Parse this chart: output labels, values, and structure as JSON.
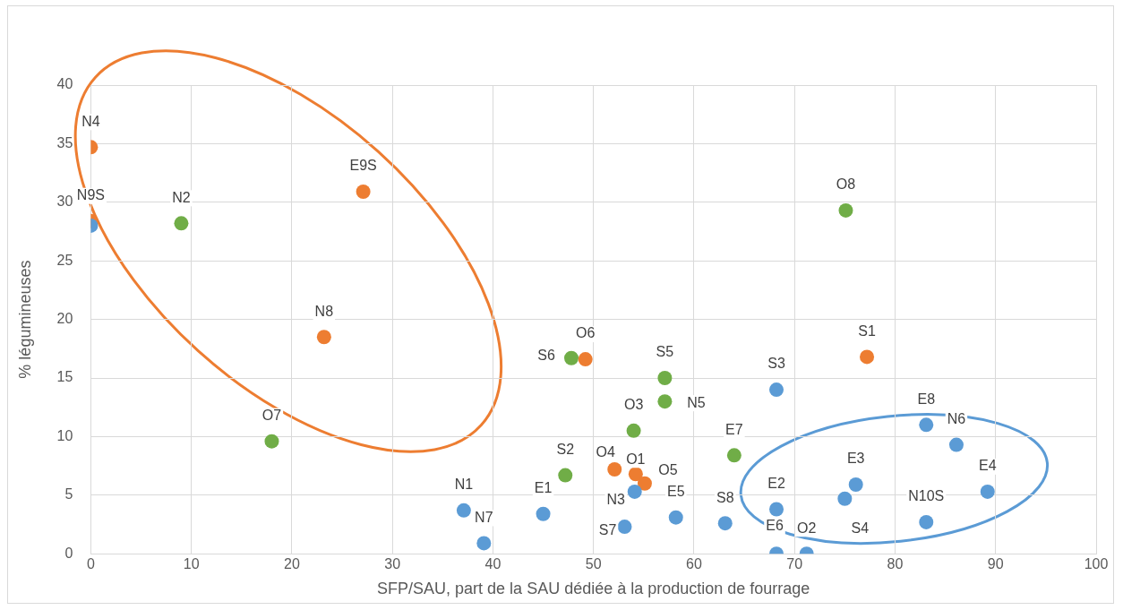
{
  "chart_data": {
    "type": "scatter",
    "xlabel": "SFP/SAU, part de la SAU dédiée à la production de fourrage",
    "ylabel": "% légumineuses",
    "xlim": [
      0,
      100
    ],
    "xticks": [
      0,
      10,
      20,
      30,
      40,
      50,
      60,
      70,
      80,
      90,
      100
    ],
    "ylim": [
      0,
      40
    ],
    "yticks": [
      0,
      5,
      10,
      15,
      20,
      25,
      30,
      35,
      40
    ],
    "grid": true,
    "legend": false,
    "marker": "circle",
    "series": [
      {
        "color": "#5b9bd5",
        "x": [
          0,
          37.1,
          39.1,
          45,
          54.1,
          53.1,
          58.2,
          63.1,
          68.2,
          68.2,
          68.2,
          71.2,
          76.1,
          75,
          83.1,
          86.1,
          89.2,
          83.1
        ],
        "values": [
          28,
          3.7,
          0.9,
          3.4,
          5.3,
          2.3,
          3.1,
          2.6,
          14,
          3.8,
          0,
          0,
          5.9,
          4.7,
          11,
          9.3,
          5.3,
          2.7
        ]
      },
      {
        "color": "#ed7d31",
        "x": [
          0,
          0,
          27.1,
          23.2,
          49.2,
          77.2,
          52.1,
          54.2,
          55.1
        ],
        "values": [
          34.7,
          28.4,
          30.9,
          18.5,
          16.6,
          16.8,
          7.2,
          6.8,
          6
        ]
      },
      {
        "color": "#70ad47",
        "x": [
          9,
          18,
          47.8,
          57.1,
          57.1,
          54,
          47.2,
          64,
          75.1
        ],
        "values": [
          28.2,
          9.6,
          16.7,
          15,
          13,
          10.5,
          6.7,
          8.4,
          29.3
        ]
      }
    ],
    "annotations": [
      {
        "text": "N4",
        "x": 0,
        "y": 34.7
      },
      {
        "text": "N9S",
        "x": 0,
        "y": 28.4
      },
      {
        "text": "E9S",
        "x": 27.1,
        "y": 30.9
      },
      {
        "text": "N8",
        "x": 23.2,
        "y": 18.5
      },
      {
        "text": "O6",
        "x": 49.2,
        "y": 16.6
      },
      {
        "text": "S6",
        "x": 47.8,
        "y": 16.7
      },
      {
        "text": "S5",
        "x": 57.1,
        "y": 15
      },
      {
        "text": "N5",
        "x": 57.1,
        "y": 13
      },
      {
        "text": "O3",
        "x": 54,
        "y": 10.5
      },
      {
        "text": "S2",
        "x": 47.2,
        "y": 6.7
      },
      {
        "text": "E7",
        "x": 64,
        "y": 8.4
      },
      {
        "text": "O8",
        "x": 75.1,
        "y": 29.3
      },
      {
        "text": "S1",
        "x": 77.2,
        "y": 16.8
      },
      {
        "text": "O7",
        "x": 18,
        "y": 9.6
      },
      {
        "text": "O4",
        "x": 52.1,
        "y": 7.2
      },
      {
        "text": "O1",
        "x": 54.2,
        "y": 6.8
      },
      {
        "text": "O5",
        "x": 55.1,
        "y": 6
      },
      {
        "text": "N3",
        "x": 54.1,
        "y": 5.3
      },
      {
        "text": "S7",
        "x": 53.1,
        "y": 2.3
      },
      {
        "text": "N1",
        "x": 37.1,
        "y": 3.7
      },
      {
        "text": "N7",
        "x": 39.1,
        "y": 0.9
      },
      {
        "text": "E1",
        "x": 45,
        "y": 3.4
      },
      {
        "text": "E5",
        "x": 58.2,
        "y": 3.1
      },
      {
        "text": "S8",
        "x": 63.1,
        "y": 2.6
      },
      {
        "text": "S3",
        "x": 68.2,
        "y": 14
      },
      {
        "text": "E2",
        "x": 68.2,
        "y": 3.8
      },
      {
        "text": "E6",
        "x": 68.2,
        "y": 0
      },
      {
        "text": "O2",
        "x": 71.2,
        "y": 0
      },
      {
        "text": "E3",
        "x": 76.1,
        "y": 5.9
      },
      {
        "text": "S4",
        "x": 75,
        "y": 4.7
      },
      {
        "text": "E8",
        "x": 83.1,
        "y": 11
      },
      {
        "text": "N6",
        "x": 86.1,
        "y": 9.3
      },
      {
        "text": "E4",
        "x": 89.2,
        "y": 5.3
      },
      {
        "text": "N10S",
        "x": 83.1,
        "y": 2.7
      },
      {
        "text": "N2",
        "x": 9,
        "y": 28.2
      }
    ]
  }
}
